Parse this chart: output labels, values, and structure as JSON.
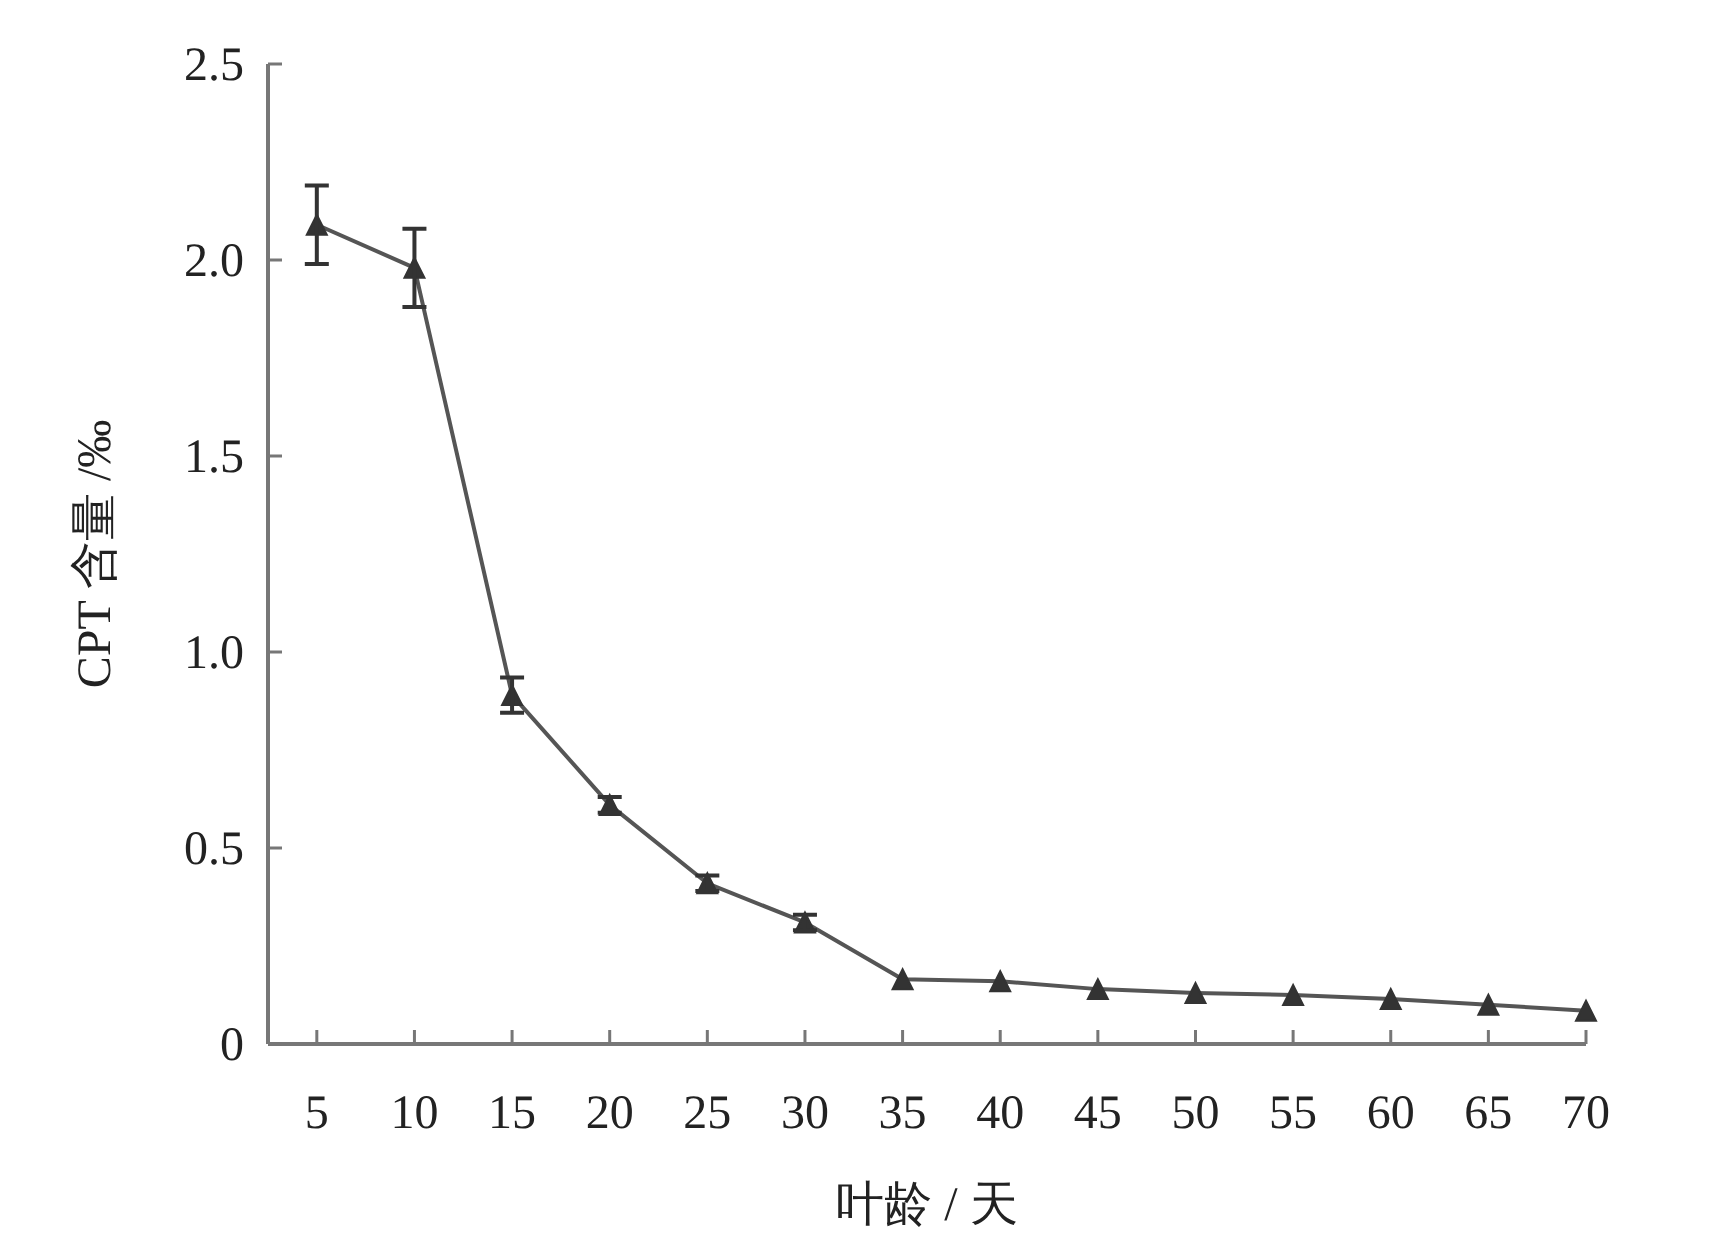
{
  "chart_data": {
    "type": "line",
    "xlabel": "叶龄 / 天",
    "ylabel": "CPT 含量 /‰",
    "x": [
      5,
      10,
      15,
      20,
      25,
      30,
      35,
      40,
      45,
      50,
      55,
      60,
      65,
      70
    ],
    "series": [
      {
        "color": "#555555",
        "values": [
          2.09,
          1.98,
          0.89,
          0.61,
          0.41,
          0.31,
          0.165,
          0.16,
          0.14,
          0.13,
          0.125,
          0.115,
          0.1,
          0.085
        ],
        "errors": [
          0.1,
          0.1,
          0.045,
          0.02,
          0.02,
          0.02,
          null,
          null,
          null,
          null,
          null,
          null,
          null,
          null
        ]
      }
    ],
    "marker": "triangle",
    "line_style": "solid",
    "xlim": [
      2.5,
      70
    ],
    "ylim": [
      0,
      2.5
    ],
    "xticks": [
      5,
      10,
      15,
      20,
      25,
      30,
      35,
      40,
      45,
      50,
      55,
      60,
      65,
      70
    ],
    "yticks": [
      0,
      0.5,
      {
        "value": 1,
        "label": "1.0"
      },
      1.5,
      {
        "value": 2,
        "label": "2.0"
      },
      2.5
    ]
  }
}
